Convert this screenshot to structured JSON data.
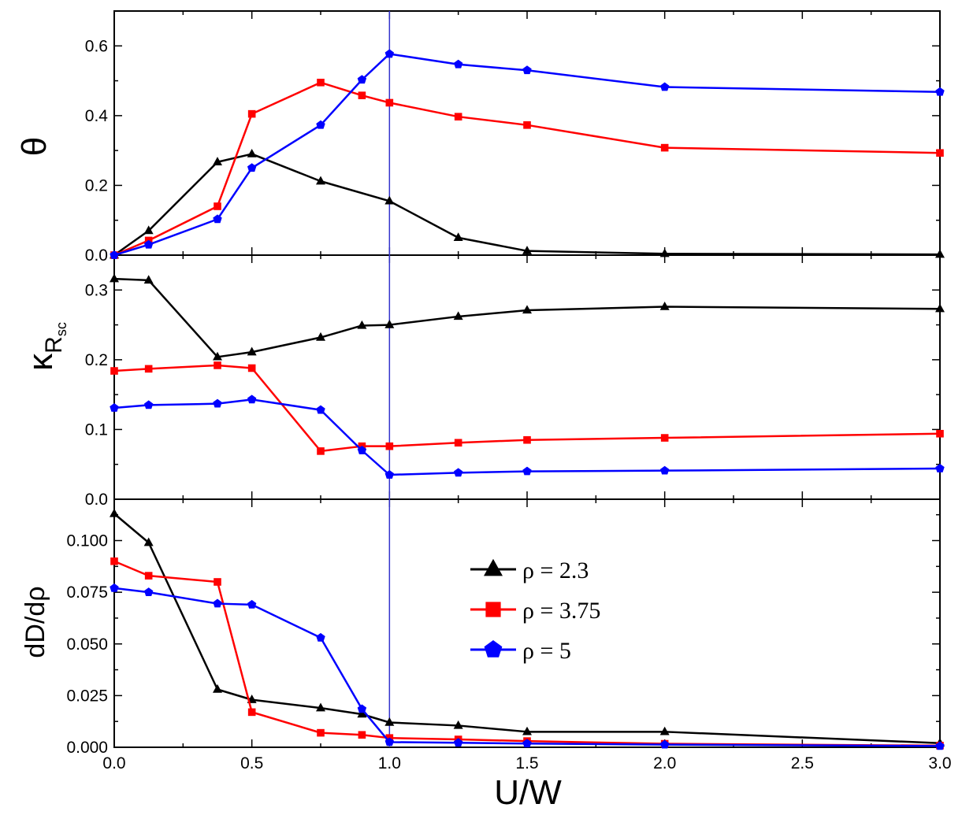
{
  "chart_data": {
    "type": "line",
    "xlabel": "U/W",
    "xlim": [
      0,
      3
    ],
    "xticks": [
      "0.0",
      "0.5",
      "1.0",
      "1.5",
      "2.0",
      "2.5",
      "3.0"
    ],
    "vline_x": 1.0,
    "x": [
      0,
      0.125,
      0.375,
      0.5,
      0.75,
      0.9,
      1.0,
      1.25,
      1.5,
      2.0,
      3.0
    ],
    "legend": {
      "placement": "center-right (bottom panel)",
      "entries": [
        "ρ = 2.3",
        "ρ = 3.75",
        "ρ = 5"
      ]
    },
    "colors": {
      "rho_2_3": "#000000",
      "rho_3_75": "#ff0000",
      "rho_5": "#0000ff",
      "vline": "#3333cc"
    },
    "markers": {
      "rho_2_3": "triangle",
      "rho_3_75": "square",
      "rho_5": "pentagon"
    },
    "panels": [
      {
        "ylabel": "θ",
        "ylim": [
          0,
          0.7
        ],
        "yticks": [
          "0.0",
          "0.2",
          "0.4",
          "0.6"
        ],
        "series": [
          {
            "values": [
              0.0,
              0.07,
              0.267,
              0.29,
              0.212,
              null,
              0.155,
              0.05,
              0.012,
              0.004,
              0.002
            ]
          },
          {
            "values": [
              0.0,
              0.042,
              0.14,
              0.405,
              0.495,
              0.458,
              0.437,
              0.397,
              0.373,
              0.308,
              0.293
            ]
          },
          {
            "values": [
              0.0,
              0.03,
              0.103,
              0.25,
              0.373,
              0.503,
              0.577,
              0.547,
              0.53,
              0.482,
              0.468
            ]
          }
        ]
      },
      {
        "ylabel": "κ",
        "ylabel_sub": "R",
        "ylabel_subsub": "sc",
        "ylim": [
          0,
          0.35
        ],
        "yticks": [
          "0.0",
          "0.1",
          "0.2",
          "0.3"
        ],
        "series": [
          {
            "values": [
              0.316,
              0.314,
              0.204,
              0.211,
              0.232,
              0.249,
              0.25,
              0.262,
              0.271,
              0.276,
              0.273
            ]
          },
          {
            "values": [
              0.184,
              0.187,
              0.192,
              0.188,
              0.069,
              0.076,
              0.076,
              0.081,
              0.085,
              0.088,
              0.094
            ]
          },
          {
            "values": [
              0.131,
              0.135,
              0.137,
              0.143,
              0.128,
              0.07,
              0.035,
              0.038,
              0.04,
              0.041,
              0.044
            ]
          }
        ]
      },
      {
        "ylabel": "dD/dρ",
        "ylim": [
          0,
          0.12
        ],
        "yticks": [
          "0.000",
          "0.025",
          "0.050",
          "0.075",
          "0.100"
        ],
        "series": [
          {
            "values": [
              0.113,
              0.099,
              0.028,
              0.023,
              0.019,
              0.016,
              0.012,
              0.0105,
              0.0075,
              0.0075,
              0.002
            ]
          },
          {
            "values": [
              0.09,
              0.083,
              0.08,
              0.017,
              0.007,
              0.006,
              0.0045,
              0.0038,
              0.003,
              0.0017,
              0.0008
            ]
          },
          {
            "values": [
              0.077,
              0.075,
              0.0695,
              0.069,
              0.053,
              0.0185,
              0.0025,
              0.0022,
              0.0018,
              0.0013,
              0.0006
            ]
          }
        ]
      }
    ]
  }
}
